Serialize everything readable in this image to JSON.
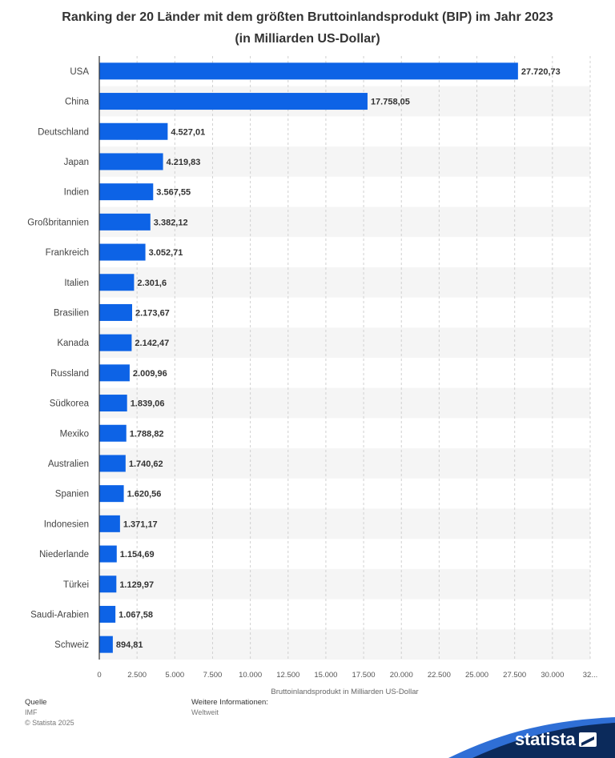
{
  "title_line1": "Ranking der 20 Länder mit dem größten Bruttoinlandsprodukt (BIP) im Jahr 2023",
  "title_line2": "(in Milliarden US-Dollar)",
  "chart_data": {
    "type": "bar",
    "orientation": "horizontal",
    "categories": [
      "USA",
      "China",
      "Deutschland",
      "Japan",
      "Indien",
      "Großbritannien",
      "Frankreich",
      "Italien",
      "Brasilien",
      "Kanada",
      "Russland",
      "Südkorea",
      "Mexiko",
      "Australien",
      "Spanien",
      "Indonesien",
      "Niederlande",
      "Türkei",
      "Saudi-Arabien",
      "Schweiz"
    ],
    "values": [
      27720.73,
      17758.05,
      4527.01,
      4219.83,
      3567.55,
      3382.12,
      3052.71,
      2301.6,
      2173.67,
      2142.47,
      2009.96,
      1839.06,
      1788.82,
      1740.62,
      1620.56,
      1371.17,
      1154.69,
      1129.97,
      1067.58,
      894.81
    ],
    "value_labels": [
      "27.720,73",
      "17.758,05",
      "4.527,01",
      "4.219,83",
      "3.567,55",
      "3.382,12",
      "3.052,71",
      "2.301,6",
      "2.173,67",
      "2.142,47",
      "2.009,96",
      "1.839,06",
      "1.788,82",
      "1.740,62",
      "1.620,56",
      "1.371,17",
      "1.154,69",
      "1.129,97",
      "1.067,58",
      "894,81"
    ],
    "xlim": [
      0,
      32500
    ],
    "x_ticks": [
      0,
      2500,
      5000,
      7500,
      10000,
      12500,
      15000,
      17500,
      20000,
      22500,
      25000,
      27500,
      30000,
      32500
    ],
    "x_tick_labels": [
      "0",
      "2.500",
      "5.000",
      "7.500",
      "10.000",
      "12.500",
      "15.000",
      "17.500",
      "20.000",
      "22.500",
      "25.000",
      "27.500",
      "30.000",
      "32..."
    ],
    "xlabel": "Bruttoinlandsprodukt in Milliarden US-Dollar",
    "grid": true,
    "bar_color": "#0d63e6",
    "stripe_color": "#f5f5f5"
  },
  "footer": {
    "source_label": "Quelle",
    "source_value": "IMF",
    "copyright": "© Statista 2025",
    "info_label": "Weitere Informationen:",
    "info_value": "Weltweit"
  },
  "brand": {
    "name": "statista",
    "band_color": "#0b2a5b",
    "accent_color": "#2f6fd6"
  }
}
